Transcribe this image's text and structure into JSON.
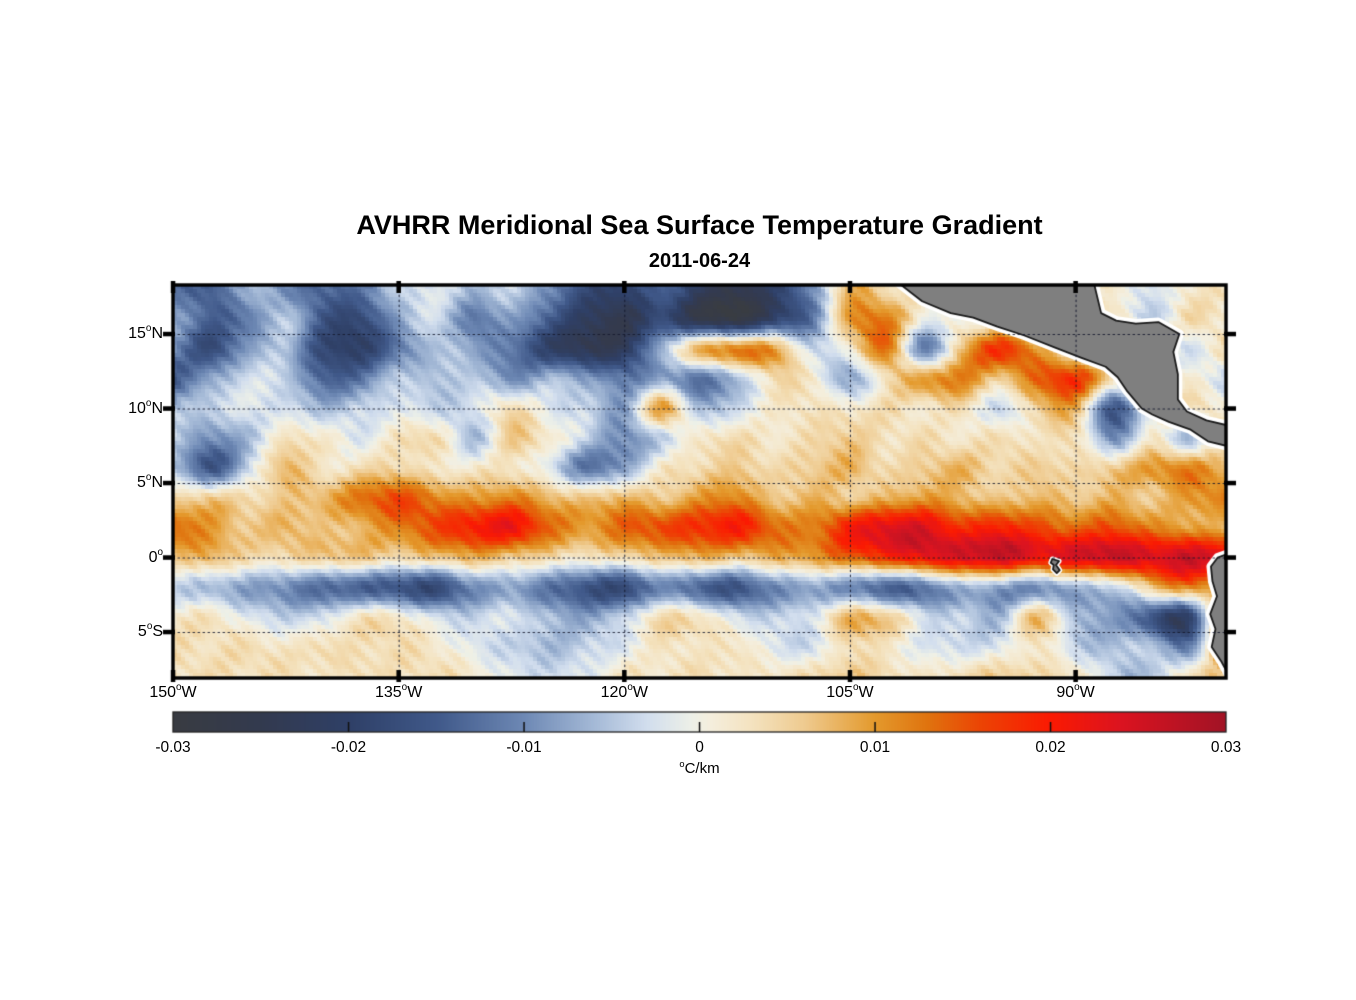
{
  "figure": {
    "title": "AVHRR Meridional Sea Surface Temperature Gradient",
    "date": "2011-06-24"
  },
  "chart_data": {
    "type": "heatmap",
    "title": "AVHRR Meridional Sea Surface Temperature Gradient",
    "subtitle": "2011-06-24",
    "units": "°C/km",
    "lon_range": [
      -150,
      -80
    ],
    "lat_range": [
      -8.1,
      18.3
    ],
    "xticks": [
      {
        "lon": -150,
        "label": "150°W"
      },
      {
        "lon": -135,
        "label": "135°W"
      },
      {
        "lon": -120,
        "label": "120°W"
      },
      {
        "lon": -105,
        "label": "105°W"
      },
      {
        "lon": -90,
        "label": "90°W"
      }
    ],
    "yticks": [
      {
        "lat": 15,
        "label": "15°N"
      },
      {
        "lat": 10,
        "label": "10°N"
      },
      {
        "lat": 5,
        "label": "5°N"
      },
      {
        "lat": 0,
        "label": "0°"
      },
      {
        "lat": -5,
        "label": "5°S"
      }
    ],
    "gridlines": {
      "lats": [
        15,
        10,
        5,
        0,
        -5
      ],
      "lons": [
        -135,
        -120,
        -105,
        -90
      ],
      "style": "dotted"
    },
    "grid_lon": [
      -150,
      -147.5,
      -145,
      -142.5,
      -140,
      -137.5,
      -135,
      -132.5,
      -130,
      -127.5,
      -125,
      -122.5,
      -120,
      -117.5,
      -115,
      -112.5,
      -110,
      -107.5,
      -105,
      -102.5,
      -100,
      -97.5,
      -95,
      -92.5,
      -90,
      -87.5,
      -85,
      -82.5,
      -80
    ],
    "grid_lat": [
      18,
      16,
      14,
      12,
      10,
      8,
      6,
      4,
      2,
      0,
      -2,
      -4,
      -6,
      -8
    ],
    "values_scale": 0.001,
    "values": [
      [
        -12,
        -15,
        -6,
        -10,
        -14,
        -12,
        -4,
        -2,
        -6,
        -4,
        -10,
        -18,
        -20,
        -14,
        -22,
        -26,
        -20,
        -10,
        8,
        4,
        0,
        0,
        0,
        0,
        0,
        2,
        -3,
        2,
        3
      ],
      [
        -8,
        -14,
        -12,
        -4,
        -16,
        -18,
        -8,
        -3,
        -12,
        -8,
        -15,
        -22,
        -25,
        -18,
        -26,
        -28,
        -20,
        -12,
        10,
        12,
        0,
        0,
        0,
        0,
        0,
        3,
        -5,
        4,
        2
      ],
      [
        -10,
        -18,
        -8,
        -6,
        -18,
        -20,
        -12,
        -5,
        -8,
        -12,
        -20,
        -24,
        -22,
        -6,
        8,
        12,
        10,
        -4,
        2,
        13,
        -12,
        8,
        18,
        10,
        0,
        0,
        2,
        -3,
        4
      ],
      [
        -15,
        -8,
        -3,
        -4,
        -14,
        -12,
        -4,
        -6,
        -4,
        -10,
        -6,
        -8,
        -12,
        -8,
        -12,
        -6,
        4,
        2,
        -8,
        4,
        10,
        12,
        6,
        14,
        18,
        4,
        0,
        2,
        -4
      ],
      [
        -6,
        -4,
        -2,
        -3,
        -6,
        -4,
        -2,
        -4,
        -3,
        4,
        -2,
        -4,
        -8,
        10,
        -6,
        -3,
        2,
        3,
        2,
        4,
        2,
        4,
        -4,
        6,
        8,
        -16,
        0,
        3,
        2
      ],
      [
        -4,
        -10,
        -6,
        3,
        2,
        -2,
        3,
        4,
        -6,
        6,
        2,
        -4,
        -10,
        -4,
        2,
        4,
        2,
        4,
        6,
        3,
        4,
        2,
        4,
        2,
        4,
        -10,
        2,
        -6,
        3
      ],
      [
        -5,
        -16,
        -4,
        8,
        2,
        4,
        5,
        2,
        2,
        3,
        -2,
        -12,
        -8,
        2,
        4,
        6,
        4,
        6,
        8,
        4,
        6,
        8,
        4,
        6,
        4,
        6,
        10,
        12,
        8
      ],
      [
        4,
        6,
        4,
        6,
        8,
        13,
        16,
        12,
        10,
        12,
        8,
        6,
        8,
        6,
        10,
        12,
        6,
        8,
        6,
        8,
        10,
        8,
        6,
        8,
        6,
        8,
        6,
        10,
        12
      ],
      [
        14,
        10,
        6,
        8,
        6,
        8,
        12,
        16,
        20,
        22,
        14,
        10,
        14,
        16,
        18,
        20,
        14,
        12,
        20,
        24,
        24,
        18,
        20,
        16,
        14,
        16,
        12,
        10,
        8
      ],
      [
        6,
        8,
        4,
        4,
        6,
        6,
        4,
        6,
        8,
        6,
        4,
        2,
        4,
        6,
        8,
        6,
        8,
        10,
        14,
        18,
        22,
        24,
        26,
        22,
        24,
        26,
        24,
        26,
        24
      ],
      [
        -4,
        -6,
        -8,
        -10,
        -13,
        -14,
        -16,
        -18,
        -10,
        -8,
        -12,
        -16,
        -18,
        -10,
        -14,
        -16,
        -10,
        -8,
        -10,
        -14,
        -12,
        -6,
        -8,
        -10,
        -6,
        -4,
        6,
        12,
        8
      ],
      [
        2,
        3,
        -2,
        -4,
        -3,
        3,
        2,
        -3,
        -4,
        -2,
        -6,
        -8,
        -4,
        4,
        3,
        -3,
        -4,
        -2,
        8,
        6,
        -3,
        -4,
        -6,
        8,
        -6,
        -8,
        -16,
        -20,
        14
      ],
      [
        4,
        3,
        4,
        2,
        4,
        3,
        4,
        2,
        -2,
        -4,
        -6,
        -4,
        -2,
        3,
        2,
        3,
        -2,
        -3,
        4,
        2,
        -2,
        -3,
        -2,
        3,
        -4,
        -6,
        -4,
        -12,
        16
      ],
      [
        3,
        4,
        3,
        4,
        2,
        4,
        3,
        4,
        2,
        -2,
        -3,
        -2,
        3,
        2,
        4,
        2,
        3,
        4,
        6,
        4,
        2,
        4,
        6,
        4,
        3,
        -4,
        -6,
        4,
        6
      ]
    ],
    "colorbar": {
      "min": -0.03,
      "max": 0.03,
      "ticks": [
        -0.03,
        -0.02,
        -0.01,
        0,
        0.01,
        0.02,
        0.03
      ],
      "tick_labels": [
        "-0.03",
        "-0.02",
        "-0.01",
        "0",
        "0.01",
        "0.02",
        "0.03"
      ],
      "unit": "°C/km",
      "colormap": [
        {
          "v": -0.03,
          "c": "#393c42"
        },
        {
          "v": -0.025,
          "c": "#333a4f"
        },
        {
          "v": -0.02,
          "c": "#2f4067"
        },
        {
          "v": -0.015,
          "c": "#40598a"
        },
        {
          "v": -0.01,
          "c": "#6e89b5"
        },
        {
          "v": -0.006,
          "c": "#a5bad7"
        },
        {
          "v": -0.003,
          "c": "#d2deee"
        },
        {
          "v": -0.0005,
          "c": "#edf0e8"
        },
        {
          "v": 0.0005,
          "c": "#f4efdf"
        },
        {
          "v": 0.003,
          "c": "#f4e3c0"
        },
        {
          "v": 0.006,
          "c": "#efcb90"
        },
        {
          "v": 0.01,
          "c": "#e49a2d"
        },
        {
          "v": 0.013,
          "c": "#e0740f"
        },
        {
          "v": 0.016,
          "c": "#ec4505"
        },
        {
          "v": 0.02,
          "c": "#fb1a02"
        },
        {
          "v": 0.024,
          "c": "#dc1420"
        },
        {
          "v": 0.03,
          "c": "#a21326"
        }
      ]
    },
    "land": {
      "fill": "#7f7f7f",
      "outline": "#1a1a1a",
      "coast_buffer": "#ffffff",
      "polygons": {
        "central_america": [
          [
            -101.8,
            18.45
          ],
          [
            -100.2,
            17.2
          ],
          [
            -98.3,
            16.4
          ],
          [
            -96.8,
            16.1
          ],
          [
            -95.2,
            15.5
          ],
          [
            -93.4,
            14.9
          ],
          [
            -91.4,
            14.1
          ],
          [
            -89.6,
            13.4
          ],
          [
            -88.0,
            12.8
          ],
          [
            -87.2,
            12.1
          ],
          [
            -86.6,
            11.2
          ],
          [
            -85.6,
            10.0
          ],
          [
            -84.9,
            9.6
          ],
          [
            -83.8,
            9.1
          ],
          [
            -82.4,
            8.6
          ],
          [
            -81.2,
            7.8
          ],
          [
            -79.6,
            7.4
          ],
          [
            -79.6,
            8.8
          ],
          [
            -81.3,
            9.2
          ],
          [
            -82.6,
            9.8
          ],
          [
            -83.2,
            10.6
          ],
          [
            -83.2,
            12.3
          ],
          [
            -83.5,
            13.8
          ],
          [
            -83.1,
            15.0
          ],
          [
            -84.5,
            15.8
          ],
          [
            -86.0,
            15.7
          ],
          [
            -87.3,
            15.9
          ],
          [
            -88.3,
            16.4
          ],
          [
            -88.8,
            18.5
          ]
        ],
        "galapagos": [
          [
            -91.55,
            -0.1
          ],
          [
            -91.1,
            -0.25
          ],
          [
            -91.3,
            -0.5
          ],
          [
            -91.05,
            -0.85
          ],
          [
            -91.25,
            -1.05
          ],
          [
            -91.5,
            -0.8
          ],
          [
            -91.45,
            -0.5
          ],
          [
            -91.65,
            -0.35
          ]
        ],
        "south_america": [
          [
            -79.6,
            0.35
          ],
          [
            -80.55,
            0.0
          ],
          [
            -81.0,
            -0.6
          ],
          [
            -80.9,
            -1.6
          ],
          [
            -80.6,
            -2.6
          ],
          [
            -81.05,
            -3.8
          ],
          [
            -80.7,
            -4.8
          ],
          [
            -80.95,
            -6.0
          ],
          [
            -80.3,
            -7.0
          ],
          [
            -79.9,
            -7.75
          ],
          [
            -79.6,
            -8.3
          ]
        ]
      }
    }
  }
}
